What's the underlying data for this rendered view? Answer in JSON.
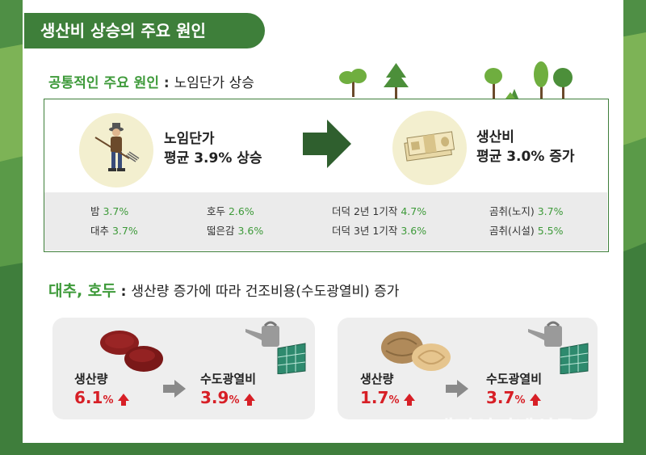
{
  "title": "생산비 상승의 주요 원인",
  "section1": {
    "heading_accent": "공통적인 주요 원인",
    "heading_colon": " : ",
    "heading_rest": "노임단가 상승",
    "left": {
      "line1": "노임단가",
      "line2": "평균 3.9% 상승"
    },
    "right": {
      "line1": "생산비",
      "line2": "평균 3.0% 증가"
    },
    "items": [
      {
        "name": "밤 ",
        "value": "3.7%"
      },
      {
        "name": "대추 ",
        "value": "3.7%"
      },
      {
        "name": "호두 ",
        "value": "2.6%"
      },
      {
        "name": "떫은감 ",
        "value": "3.6%"
      },
      {
        "name": "더덕 2년 1기작 ",
        "value": "4.7%"
      },
      {
        "name": "더덕 3년 1기작 ",
        "value": "3.6%"
      },
      {
        "name": "곰취(노지) ",
        "value": "3.7%"
      },
      {
        "name": "곰취(시설) ",
        "value": "5.5%"
      }
    ]
  },
  "section2": {
    "heading_accent": "대추, 호두",
    "heading_colon": " : ",
    "heading_rest": "생산량 증가에 따라 건조비용(수도광열비) 증가",
    "cards": [
      {
        "label_a": "생산량",
        "value_a": "6.1",
        "label_b": "수도광열비",
        "value_b": "3.9",
        "unit": "%"
      },
      {
        "label_a": "생산량",
        "value_a": "1.7",
        "label_b": "수도광열비",
        "value_b": "3.7",
        "unit": "%"
      }
    ]
  },
  "watermark": "대전인터넷신문",
  "colors": {
    "green": "#3e7f3a",
    "accent": "#3e9a3a",
    "red": "#d71f26"
  }
}
